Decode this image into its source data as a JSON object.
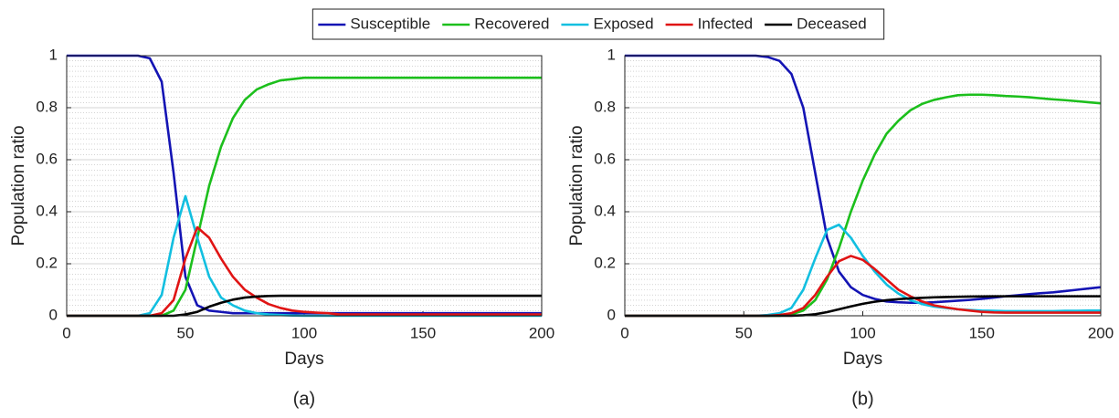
{
  "chart_data": [
    {
      "type": "line",
      "label": "(a)",
      "x_label": "Days",
      "y_label": "Population ratio",
      "legend": "top",
      "x": [
        0,
        5,
        10,
        15,
        20,
        25,
        30,
        35,
        40,
        45,
        50,
        55,
        60,
        65,
        70,
        75,
        80,
        85,
        90,
        95,
        100,
        105,
        110,
        115,
        120,
        125,
        130,
        135,
        140,
        145,
        150,
        155,
        160,
        165,
        170,
        175,
        180,
        185,
        190,
        195,
        200
      ],
      "xlim": [
        0,
        200
      ],
      "xticks": [
        0,
        50,
        100,
        150,
        200
      ],
      "ylim": [
        0,
        1
      ],
      "yticks": [
        0,
        0.2,
        0.4,
        0.6,
        0.8,
        1
      ],
      "grid": true,
      "series": [
        {
          "name": "Susceptible",
          "color": "#1414b4",
          "values": [
            1,
            1,
            1,
            1,
            1,
            1,
            1,
            0.99,
            0.9,
            0.55,
            0.15,
            0.04,
            0.02,
            0.015,
            0.01,
            0.01,
            0.01,
            0.01,
            0.01,
            0.01,
            0.01,
            0.01,
            0.01,
            0.01,
            0.01,
            0.01,
            0.01,
            0.01,
            0.01,
            0.01,
            0.01,
            0.01,
            0.01,
            0.01,
            0.01,
            0.01,
            0.01,
            0.01,
            0.01,
            0.01,
            0.01
          ]
        },
        {
          "name": "Recovered",
          "color": "#1cbf1c",
          "values": [
            0,
            0,
            0,
            0,
            0,
            0,
            0,
            0,
            0,
            0.02,
            0.1,
            0.3,
            0.5,
            0.65,
            0.76,
            0.83,
            0.87,
            0.89,
            0.905,
            0.91,
            0.915,
            0.915,
            0.915,
            0.915,
            0.915,
            0.915,
            0.915,
            0.915,
            0.915,
            0.915,
            0.915,
            0.915,
            0.915,
            0.915,
            0.915,
            0.915,
            0.915,
            0.915,
            0.915,
            0.915,
            0.915
          ]
        },
        {
          "name": "Exposed",
          "color": "#12bfe0",
          "values": [
            0,
            0,
            0,
            0,
            0,
            0,
            0,
            0.01,
            0.08,
            0.3,
            0.46,
            0.3,
            0.15,
            0.07,
            0.04,
            0.02,
            0.01,
            0.005,
            0.003,
            0.001,
            0,
            0,
            0,
            0,
            0,
            0,
            0,
            0,
            0,
            0,
            0,
            0,
            0,
            0,
            0,
            0,
            0,
            0,
            0,
            0,
            0
          ]
        },
        {
          "name": "Infected",
          "color": "#e01414",
          "values": [
            0,
            0,
            0,
            0,
            0,
            0,
            0,
            0,
            0.01,
            0.06,
            0.22,
            0.34,
            0.3,
            0.22,
            0.15,
            0.1,
            0.07,
            0.045,
            0.03,
            0.02,
            0.015,
            0.012,
            0.01,
            0.005,
            0.005,
            0.005,
            0.005,
            0.005,
            0.005,
            0.005,
            0.005,
            0.005,
            0.005,
            0.005,
            0.005,
            0.005,
            0.005,
            0.005,
            0.005,
            0.005,
            0.005
          ]
        },
        {
          "name": "Deceased",
          "color": "#000000",
          "values": [
            0,
            0,
            0,
            0,
            0,
            0,
            0,
            0,
            0,
            0,
            0.005,
            0.015,
            0.035,
            0.05,
            0.062,
            0.07,
            0.074,
            0.076,
            0.077,
            0.077,
            0.077,
            0.077,
            0.077,
            0.077,
            0.077,
            0.077,
            0.077,
            0.077,
            0.077,
            0.077,
            0.077,
            0.077,
            0.077,
            0.077,
            0.077,
            0.077,
            0.077,
            0.077,
            0.077,
            0.077,
            0.077
          ]
        }
      ]
    },
    {
      "type": "line",
      "label": "(b)",
      "x_label": "Days",
      "y_label": "Population ratio",
      "x": [
        0,
        5,
        10,
        15,
        20,
        25,
        30,
        35,
        40,
        45,
        50,
        55,
        60,
        65,
        70,
        75,
        80,
        85,
        90,
        95,
        100,
        105,
        110,
        115,
        120,
        125,
        130,
        135,
        140,
        145,
        150,
        155,
        160,
        165,
        170,
        175,
        180,
        185,
        190,
        195,
        200
      ],
      "xlim": [
        0,
        200
      ],
      "xticks": [
        0,
        50,
        100,
        150,
        200
      ],
      "ylim": [
        0,
        1
      ],
      "yticks": [
        0,
        0.2,
        0.4,
        0.6,
        0.8,
        1
      ],
      "grid": true,
      "series": [
        {
          "color": "#1414b4",
          "values": [
            1,
            1,
            1,
            1,
            1,
            1,
            1,
            1,
            1,
            1,
            1,
            1,
            0.995,
            0.98,
            0.93,
            0.8,
            0.55,
            0.3,
            0.17,
            0.11,
            0.08,
            0.065,
            0.055,
            0.052,
            0.05,
            0.05,
            0.052,
            0.055,
            0.058,
            0.061,
            0.065,
            0.07,
            0.075,
            0.079,
            0.083,
            0.087,
            0.09,
            0.095,
            0.1,
            0.105,
            0.11
          ]
        },
        {
          "color": "#1cbf1c",
          "values": [
            0,
            0,
            0,
            0,
            0,
            0,
            0,
            0,
            0,
            0,
            0,
            0,
            0,
            0,
            0.005,
            0.02,
            0.06,
            0.14,
            0.26,
            0.4,
            0.52,
            0.62,
            0.7,
            0.75,
            0.79,
            0.815,
            0.83,
            0.84,
            0.848,
            0.85,
            0.85,
            0.848,
            0.845,
            0.843,
            0.84,
            0.836,
            0.832,
            0.829,
            0.825,
            0.821,
            0.817
          ]
        },
        {
          "color": "#12bfe0",
          "values": [
            0,
            0,
            0,
            0,
            0,
            0,
            0,
            0,
            0,
            0,
            0,
            0,
            0.003,
            0.01,
            0.03,
            0.1,
            0.22,
            0.33,
            0.35,
            0.3,
            0.23,
            0.17,
            0.12,
            0.085,
            0.06,
            0.045,
            0.035,
            0.03,
            0.025,
            0.022,
            0.02,
            0.019,
            0.018,
            0.018,
            0.018,
            0.018,
            0.018,
            0.019,
            0.019,
            0.02,
            0.02
          ]
        },
        {
          "color": "#e01414",
          "values": [
            0,
            0,
            0,
            0,
            0,
            0,
            0,
            0,
            0,
            0,
            0,
            0,
            0,
            0.003,
            0.01,
            0.03,
            0.08,
            0.15,
            0.21,
            0.23,
            0.215,
            0.18,
            0.14,
            0.1,
            0.075,
            0.055,
            0.04,
            0.032,
            0.025,
            0.02,
            0.015,
            0.013,
            0.012,
            0.012,
            0.012,
            0.012,
            0.012,
            0.012,
            0.012,
            0.012,
            0.012
          ]
        },
        {
          "color": "#000000",
          "values": [
            0,
            0,
            0,
            0,
            0,
            0,
            0,
            0,
            0,
            0,
            0,
            0,
            0,
            0,
            0,
            0.002,
            0.006,
            0.014,
            0.025,
            0.036,
            0.046,
            0.054,
            0.06,
            0.064,
            0.067,
            0.069,
            0.071,
            0.072,
            0.073,
            0.074,
            0.0745,
            0.075,
            0.075,
            0.075,
            0.075,
            0.075,
            0.075,
            0.075,
            0.075,
            0.075,
            0.075
          ]
        }
      ]
    }
  ]
}
